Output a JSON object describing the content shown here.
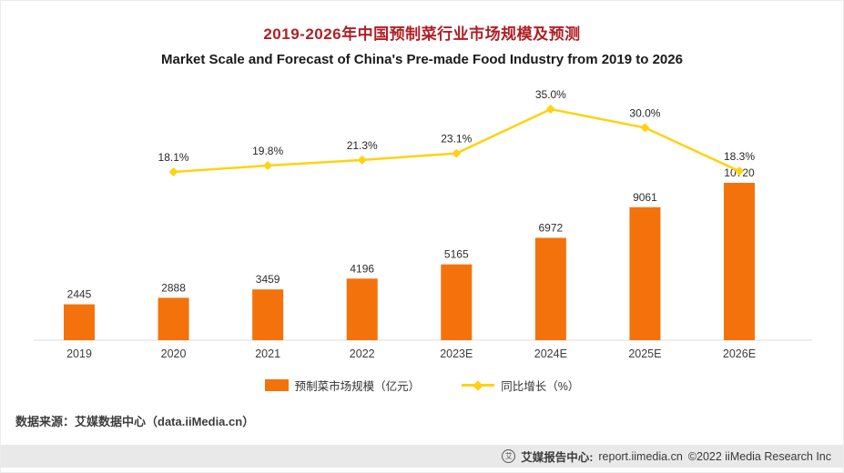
{
  "title": "2019-2026年中国预制菜行业市场规模及预测",
  "subtitle": "Market Scale and Forecast of China's Pre-made Food Industry from 2019 to 2026",
  "colors": {
    "title_color": "#b01f24",
    "bar_color": "#f4720c",
    "line_color": "#ffd211",
    "footer_bg": "#e9e9e9"
  },
  "chart_data": {
    "type": "bar",
    "note": "combo bar + line chart, no y-axis shown, value labels on points",
    "categories": [
      "2019",
      "2020",
      "2021",
      "2022",
      "2023E",
      "2024E",
      "2025E",
      "2026E"
    ],
    "series": [
      {
        "name": "预制菜市场规模（亿元）",
        "type": "bar",
        "color": "#f4720c",
        "values": [
          2445,
          2888,
          3459,
          4196,
          5165,
          6972,
          9061,
          10720
        ]
      },
      {
        "name": "同比增长（%）",
        "type": "line",
        "color": "#ffd211",
        "values": [
          null,
          18.1,
          19.8,
          21.3,
          23.1,
          35.0,
          30.0,
          18.3
        ]
      }
    ],
    "bar_value_labels": [
      "2445",
      "2888",
      "3459",
      "4196",
      "5165",
      "6972",
      "9061",
      "10720"
    ],
    "line_value_labels": [
      "18.1%",
      "19.8%",
      "21.3%",
      "23.1%",
      "35.0%",
      "30.0%",
      "18.3%"
    ],
    "grid": false,
    "legend_position": "bottom"
  },
  "legend": {
    "bar_label": "预制菜市场规模（亿元）",
    "line_label": "同比增长（%）"
  },
  "source": "数据来源：艾媒数据中心（data.iiMedia.cn）",
  "footer": {
    "logo_glyph": "艾",
    "brand": "艾媒报告中心:",
    "url": "report.iimedia.cn",
    "copyright": "©2022  iiMedia Research Inc"
  }
}
